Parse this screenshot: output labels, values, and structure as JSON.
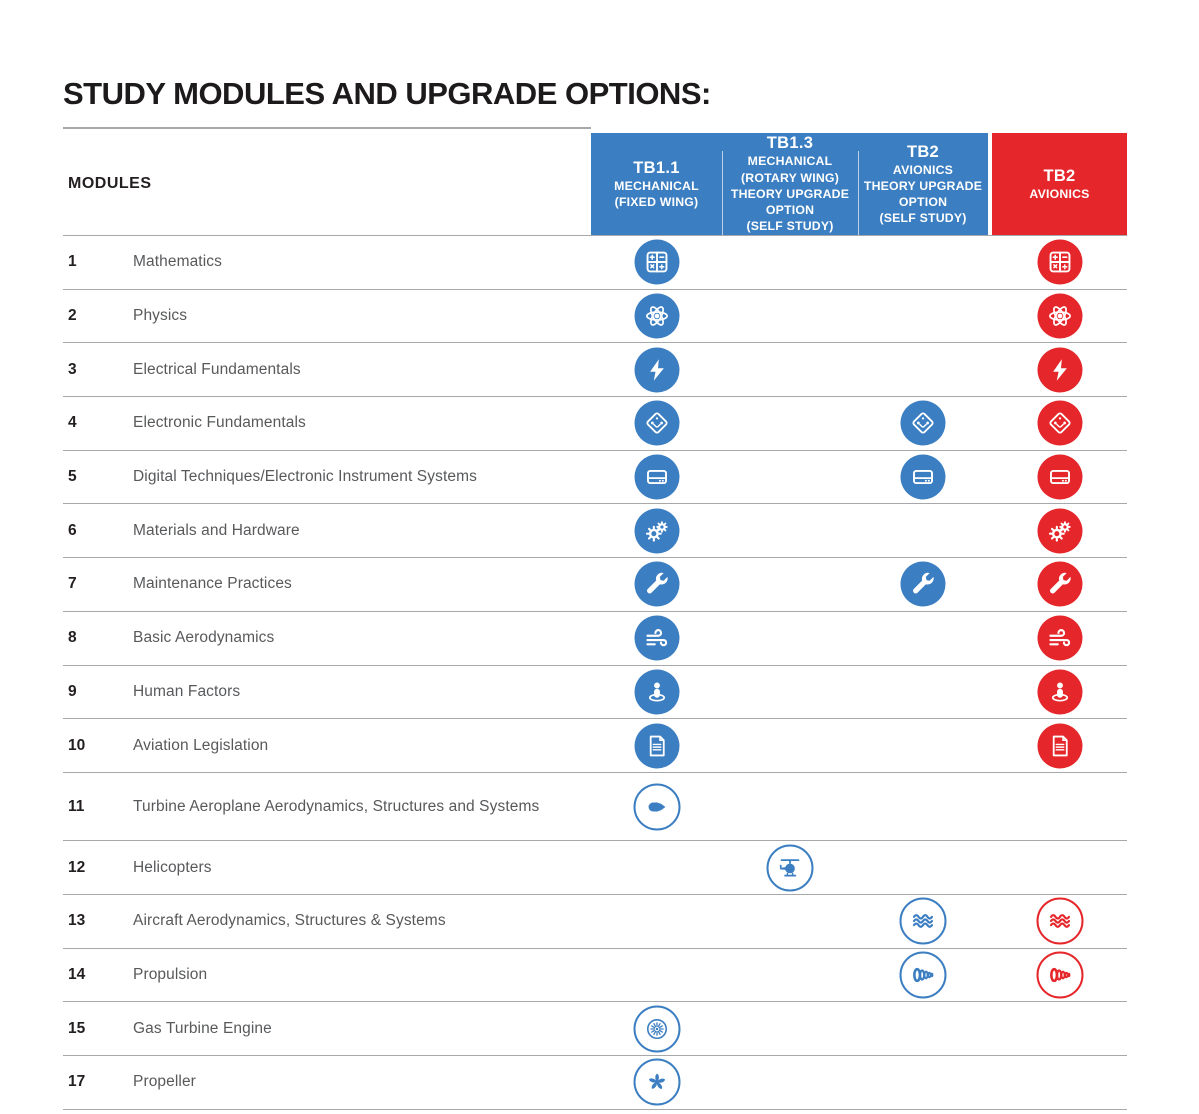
{
  "page": {
    "title": "STUDY MODULES AND UPGRADE OPTIONS:"
  },
  "colors": {
    "blue": "#3b7ec1",
    "red": "#e5272b",
    "rule_gray": "#a6a8ab",
    "number_text": "#231f20",
    "module_text": "#58595b"
  },
  "table": {
    "modules_label": "MODULES",
    "columns": [
      {
        "code": "TB1.1",
        "lines": [
          "MECHANICAL",
          "(FIXED WING)"
        ],
        "theme": "blue"
      },
      {
        "code": "TB1.3",
        "lines": [
          "MECHANICAL",
          "(ROTARY WING)",
          "THEORY UPGRADE",
          "OPTION",
          "(SELF STUDY)"
        ],
        "theme": "blue"
      },
      {
        "code": "TB2",
        "lines": [
          "AVIONICS",
          "THEORY UPGRADE",
          "OPTION",
          "(SELF STUDY)"
        ],
        "theme": "blue"
      },
      {
        "code": "TB2",
        "lines": [
          "AVIONICS"
        ],
        "theme": "red"
      }
    ],
    "rows": [
      {
        "number": "1",
        "name": "Mathematics",
        "icon": "calculator-icon",
        "cells": [
          "filled",
          "",
          "",
          "filled"
        ]
      },
      {
        "number": "2",
        "name": "Physics",
        "icon": "atom-icon",
        "cells": [
          "filled",
          "",
          "",
          "filled"
        ]
      },
      {
        "number": "3",
        "name": "Electrical Fundamentals",
        "icon": "lightning-icon",
        "cells": [
          "filled",
          "",
          "",
          "filled"
        ]
      },
      {
        "number": "4",
        "name": "Electronic Fundamentals",
        "icon": "circuit-icon",
        "cells": [
          "filled",
          "",
          "filled",
          "filled"
        ]
      },
      {
        "number": "5",
        "name": "Digital Techniques/Electronic Instrument Systems",
        "icon": "harddrive-icon",
        "cells": [
          "filled",
          "",
          "filled",
          "filled"
        ]
      },
      {
        "number": "6",
        "name": "Materials and Hardware",
        "icon": "gears-icon",
        "cells": [
          "filled",
          "",
          "",
          "filled"
        ]
      },
      {
        "number": "7",
        "name": "Maintenance Practices",
        "icon": "wrench-icon",
        "cells": [
          "filled",
          "",
          "filled",
          "filled"
        ]
      },
      {
        "number": "8",
        "name": "Basic Aerodynamics",
        "icon": "wind-icon",
        "cells": [
          "filled",
          "",
          "",
          "filled"
        ]
      },
      {
        "number": "9",
        "name": "Human Factors",
        "icon": "human-icon",
        "cells": [
          "filled",
          "",
          "",
          "filled"
        ]
      },
      {
        "number": "10",
        "name": "Aviation Legislation",
        "icon": "document-icon",
        "cells": [
          "filled",
          "",
          "",
          "filled"
        ]
      },
      {
        "number": "11",
        "name": "Turbine Aeroplane Aerodynamics, Structures and Systems",
        "icon": "jet-engine-icon",
        "cells": [
          "outlined",
          "",
          "",
          ""
        ],
        "tall": true
      },
      {
        "number": "12",
        "name": "Helicopters",
        "icon": "helicopter-icon",
        "cells": [
          "",
          "outlined",
          "",
          ""
        ]
      },
      {
        "number": "13",
        "name": "Aircraft Aerodynamics, Structures & Systems",
        "icon": "waves-icon",
        "cells": [
          "",
          "",
          "outlined",
          "outlined"
        ]
      },
      {
        "number": "14",
        "name": "Propulsion",
        "icon": "propulsion-icon",
        "cells": [
          "",
          "",
          "outlined",
          "outlined"
        ]
      },
      {
        "number": "15",
        "name": "Gas Turbine Engine",
        "icon": "turbine-icon",
        "cells": [
          "outlined",
          "",
          "",
          ""
        ]
      },
      {
        "number": "17",
        "name": "Propeller",
        "icon": "propeller-icon",
        "cells": [
          "outlined",
          "",
          "",
          ""
        ]
      }
    ]
  }
}
